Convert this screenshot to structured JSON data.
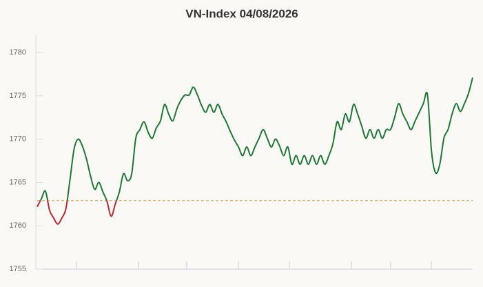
{
  "chart_data": {
    "type": "line",
    "title": "VN-Index 04/08/2026",
    "values": [
      1762.2,
      1763.1,
      1764.0,
      1761.8,
      1760.9,
      1760.2,
      1760.9,
      1762.0,
      1765.4,
      1768.9,
      1770.0,
      1769.2,
      1767.7,
      1765.7,
      1764.2,
      1765.0,
      1763.9,
      1762.8,
      1761.1,
      1762.5,
      1763.9,
      1766.0,
      1765.2,
      1766.0,
      1770.1,
      1771.1,
      1772.0,
      1770.8,
      1770.1,
      1771.3,
      1772.1,
      1774.0,
      1772.9,
      1772.1,
      1773.5,
      1774.5,
      1775.1,
      1775.1,
      1776.0,
      1775.1,
      1773.9,
      1773.1,
      1774.0,
      1773.1,
      1774.0,
      1772.9,
      1772.0,
      1770.9,
      1769.9,
      1769.1,
      1768.1,
      1769.1,
      1768.1,
      1769.1,
      1770.1,
      1771.1,
      1770.1,
      1769.1,
      1770.0,
      1769.2,
      1768.1,
      1769.1,
      1767.1,
      1768.1,
      1767.1,
      1768.1,
      1767.1,
      1768.1,
      1767.1,
      1768.1,
      1767.1,
      1768.1,
      1769.5,
      1772.0,
      1771.1,
      1772.9,
      1772.0,
      1774.0,
      1772.9,
      1771.5,
      1770.1,
      1771.1,
      1770.1,
      1771.1,
      1770.1,
      1771.1,
      1771.1,
      1772.5,
      1774.1,
      1772.9,
      1772.0,
      1771.1,
      1772.1,
      1773.1,
      1774.1,
      1775.1,
      1768.5,
      1766.1,
      1767.1,
      1770.1,
      1771.1,
      1772.9,
      1774.1,
      1773.2,
      1774.1,
      1775.3,
      1777.1
    ],
    "reference": 1762.9,
    "color": "#1a7a35",
    "below_color": "#c0272d",
    "reference_color": "#e0a040",
    "ylim": [
      1755,
      1782
    ],
    "yticks": [
      1755,
      1760,
      1765,
      1770,
      1775,
      1780
    ]
  }
}
